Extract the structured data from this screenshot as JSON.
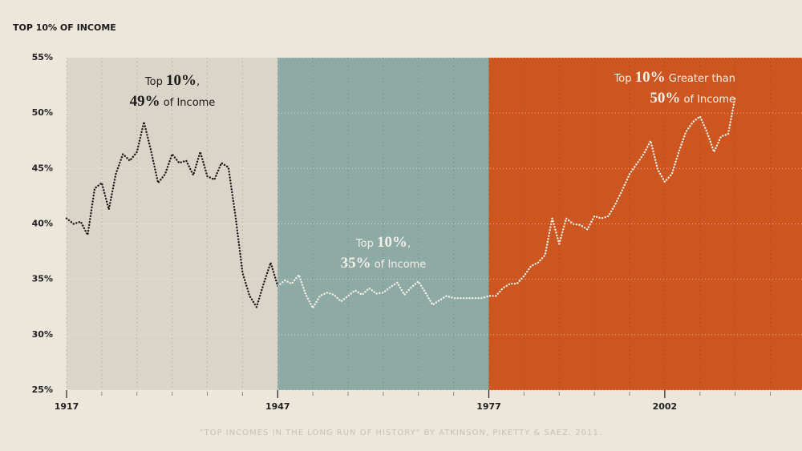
{
  "chart_data": {
    "type": "line",
    "title": "TOP 10% OF INCOME",
    "source": "\"TOP INCOMES IN THE LONG RUN OF HISTORY\" BY ATKINSON, PIKETTY & SAEZ. 2011.",
    "xlim": [
      1917,
      2021.5
    ],
    "ylim": [
      25,
      55
    ],
    "xticks": [
      1917,
      1947,
      1977,
      2002
    ],
    "xgrid": [
      1917,
      1922,
      1927,
      1932,
      1937,
      1942,
      1947,
      1952,
      1957,
      1962,
      1967,
      1972,
      1977,
      1982,
      1987,
      1992,
      1997,
      2002,
      2007,
      2012,
      2017
    ],
    "yticks": [
      {
        "value": 25,
        "label": "25%"
      },
      {
        "value": 30,
        "label": "30%"
      },
      {
        "value": 35,
        "label": "35%"
      },
      {
        "value": 40,
        "label": "40%"
      },
      {
        "value": 45,
        "label": "45%"
      },
      {
        "value": 50,
        "label": "50%"
      },
      {
        "value": 55,
        "label": "55%"
      }
    ],
    "grid": true,
    "bands": [
      {
        "from": 1917,
        "to": 1947,
        "color": "#dbd4c8"
      },
      {
        "from": 1947,
        "to": 1977,
        "color": "#8eaaa4"
      },
      {
        "from": 1977,
        "to": 2021.5,
        "color": "#cc5520"
      }
    ],
    "line_colors": [
      "#1a1a1a",
      "#f4efe6"
    ],
    "x": [
      1917,
      1918,
      1919,
      1920,
      1921,
      1922,
      1923,
      1924,
      1925,
      1926,
      1927,
      1928,
      1929,
      1930,
      1931,
      1932,
      1933,
      1934,
      1935,
      1936,
      1937,
      1938,
      1939,
      1940,
      1941,
      1942,
      1943,
      1944,
      1945,
      1946,
      1947,
      1948,
      1949,
      1950,
      1951,
      1952,
      1953,
      1954,
      1955,
      1956,
      1957,
      1958,
      1959,
      1960,
      1961,
      1962,
      1963,
      1964,
      1965,
      1966,
      1967,
      1968,
      1969,
      1970,
      1971,
      1972,
      1973,
      1974,
      1975,
      1976,
      1977,
      1978,
      1979,
      1980,
      1981,
      1982,
      1983,
      1984,
      1985,
      1986,
      1987,
      1988,
      1989,
      1990,
      1991,
      1992,
      1993,
      1994,
      1995,
      1996,
      1997,
      1998,
      1999,
      2000,
      2001,
      2002,
      2003,
      2004,
      2005,
      2006,
      2007,
      2008,
      2009,
      2010,
      2011,
      2012
    ],
    "values": [
      40.5,
      40.0,
      40.2,
      39.0,
      43.2,
      43.7,
      41.3,
      44.5,
      46.3,
      45.7,
      46.5,
      49.2,
      46.6,
      43.7,
      44.5,
      46.3,
      45.5,
      45.7,
      44.4,
      46.5,
      44.3,
      44.0,
      45.5,
      45.1,
      40.7,
      35.6,
      33.5,
      32.5,
      34.6,
      36.5,
      34.4,
      34.9,
      34.6,
      35.4,
      33.6,
      32.4,
      33.5,
      33.8,
      33.6,
      33.0,
      33.5,
      34.0,
      33.6,
      34.2,
      33.7,
      33.8,
      34.3,
      34.7,
      33.6,
      34.3,
      34.8,
      33.8,
      32.7,
      33.1,
      33.5,
      33.3,
      33.3,
      33.3,
      33.3,
      33.3,
      33.5,
      33.5,
      34.2,
      34.6,
      34.6,
      35.3,
      36.2,
      36.5,
      37.2,
      40.5,
      38.2,
      40.5,
      40.0,
      39.9,
      39.5,
      40.7,
      40.5,
      40.7,
      41.8,
      43.1,
      44.5,
      45.4,
      46.3,
      47.5,
      44.9,
      43.8,
      44.5,
      46.5,
      48.3,
      49.2,
      49.7,
      48.3,
      46.5,
      47.9,
      48.1,
      51.4
    ],
    "annotations": [
      {
        "lines": [
          [
            {
              "text": "Top "
            },
            {
              "text": "10%",
              "emphasis": true
            },
            {
              "text": ","
            }
          ],
          [
            {
              "text": "49%",
              "emphasis": true
            },
            {
              "text": " of Income"
            }
          ]
        ]
      },
      {
        "lines": [
          [
            {
              "text": "Top "
            },
            {
              "text": "10%",
              "emphasis": true
            },
            {
              "text": ","
            }
          ],
          [
            {
              "text": "35%",
              "emphasis": true
            },
            {
              "text": " of Income"
            }
          ]
        ]
      },
      {
        "lines": [
          [
            {
              "text": "Top "
            },
            {
              "text": "10%",
              "emphasis": true
            },
            {
              "text": " Greater than"
            }
          ],
          [
            {
              "text": "50%",
              "emphasis": true
            },
            {
              "text": " of Income"
            }
          ]
        ]
      }
    ]
  }
}
